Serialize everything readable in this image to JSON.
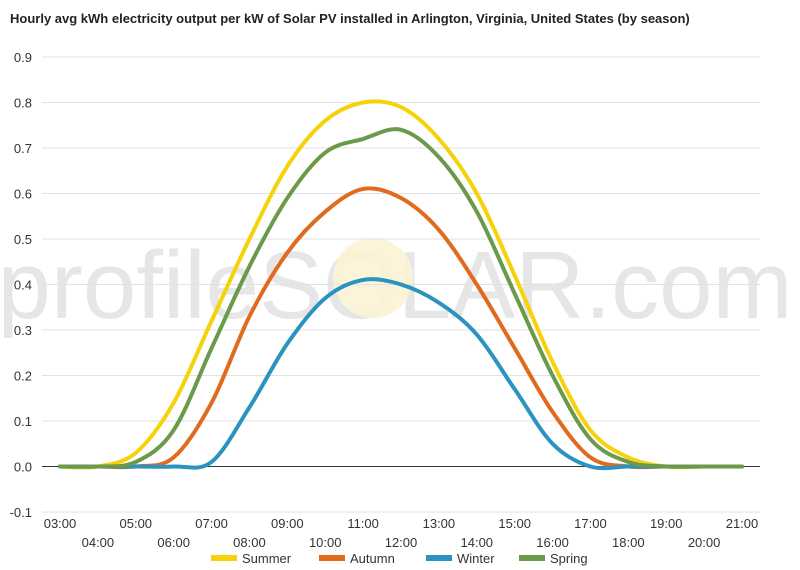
{
  "chart_data": {
    "type": "line",
    "title": "Hourly avg kWh electricity output per kW of Solar PV installed in Arlington, Virginia, United States (by season)",
    "watermark": "profileSOLAR.com",
    "x_labels": [
      "03:00",
      "04:00",
      "05:00",
      "06:00",
      "07:00",
      "08:00",
      "09:00",
      "10:00",
      "11:00",
      "12:00",
      "13:00",
      "14:00",
      "15:00",
      "16:00",
      "17:00",
      "18:00",
      "19:00",
      "20:00",
      "21:00"
    ],
    "x": [
      3,
      4,
      5,
      6,
      7,
      8,
      9,
      10,
      11,
      12,
      13,
      14,
      15,
      16,
      17,
      18,
      19,
      20,
      21
    ],
    "ylim": [
      -0.1,
      0.9
    ],
    "y_ticks": [
      -0.1,
      0.0,
      0.1,
      0.2,
      0.3,
      0.4,
      0.5,
      0.6,
      0.7,
      0.8,
      0.9
    ],
    "y_tick_labels": [
      "-0.1",
      "0.0",
      "0.1",
      "0.2",
      "0.3",
      "0.4",
      "0.5",
      "0.6",
      "0.7",
      "0.8",
      "0.9"
    ],
    "grid": true,
    "legend_position": "bottom",
    "series": [
      {
        "name": "Summer",
        "color": "#f5d20a",
        "values": [
          0.0,
          0.0,
          0.03,
          0.14,
          0.32,
          0.5,
          0.66,
          0.76,
          0.8,
          0.79,
          0.72,
          0.6,
          0.42,
          0.23,
          0.08,
          0.02,
          0.0,
          0.0,
          0.0
        ]
      },
      {
        "name": "Autumn",
        "color": "#e06b1f",
        "values": [
          0.0,
          0.0,
          0.0,
          0.02,
          0.14,
          0.33,
          0.47,
          0.56,
          0.61,
          0.59,
          0.52,
          0.4,
          0.26,
          0.12,
          0.02,
          0.0,
          0.0,
          0.0,
          0.0
        ]
      },
      {
        "name": "Winter",
        "color": "#2b93bf",
        "values": [
          0.0,
          0.0,
          0.0,
          0.0,
          0.01,
          0.13,
          0.27,
          0.37,
          0.41,
          0.4,
          0.36,
          0.29,
          0.17,
          0.05,
          0.0,
          0.0,
          0.0,
          0.0,
          0.0
        ]
      },
      {
        "name": "Spring",
        "color": "#6a9a4a",
        "values": [
          0.0,
          0.0,
          0.01,
          0.08,
          0.26,
          0.44,
          0.59,
          0.69,
          0.72,
          0.74,
          0.68,
          0.56,
          0.38,
          0.2,
          0.06,
          0.01,
          0.0,
          0.0,
          0.0
        ]
      }
    ]
  }
}
